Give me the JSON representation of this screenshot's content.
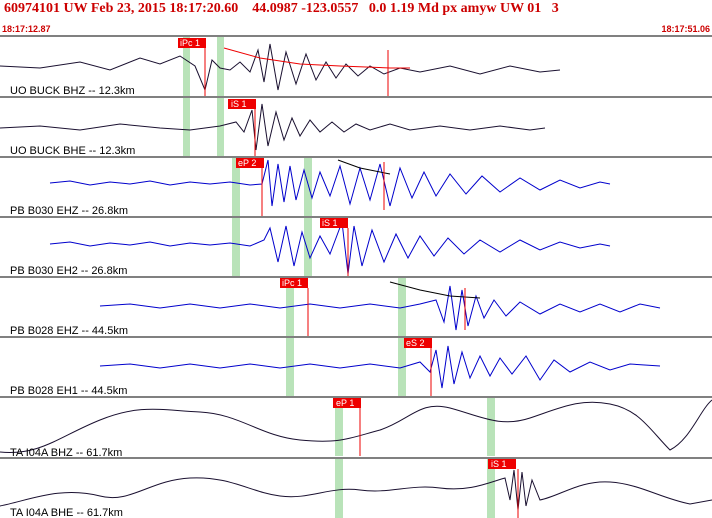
{
  "header": {
    "title": "60974101 UW Feb 23, 2015 18:17:20.60    44.0987 -123.0557   0.0 1.19 Md px amyw UW 01   3",
    "time_start": "18:17:12.87",
    "time_end": "18:17:51.06"
  },
  "colors": {
    "header": "#cc0000",
    "pick": "#ee0000",
    "window": "#b9e3b9",
    "trace_dark": "#1a1030",
    "trace_blue": "#0000cc"
  },
  "traces": [
    {
      "label": "UO BUCK BHZ -- 12.3km",
      "pick": "iPc 1"
    },
    {
      "label": "UO BUCK BHE -- 12.3km",
      "pick": "iS 1"
    },
    {
      "label": "PB B030 EHZ -- 26.8km",
      "pick": "eP 2"
    },
    {
      "label": "PB B030 EH2 -- 26.8km",
      "pick": "iS 1"
    },
    {
      "label": "PB B028 EHZ -- 44.5km",
      "pick": "iPc 1"
    },
    {
      "label": "PB B028 EH1 -- 44.5km",
      "pick": "eS 2"
    },
    {
      "label": "TA I04A BHZ -- 61.7km",
      "pick": "eP 1"
    },
    {
      "label": "TA I04A BHE -- 61.7km",
      "pick": "iS 1"
    }
  ]
}
